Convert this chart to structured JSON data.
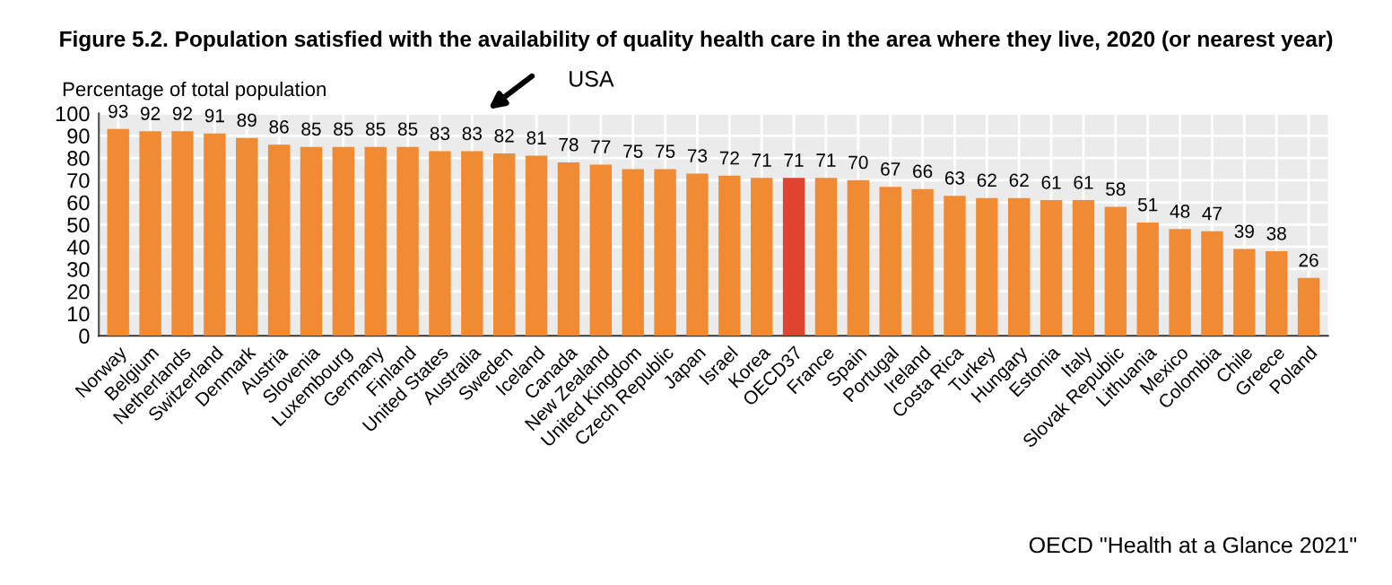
{
  "chart_data": {
    "type": "bar",
    "title": "Figure 5.2. Population satisfied with the availability of quality health care in the area where they live, 2020 (or nearest year)",
    "ylabel": "Percentage of total population",
    "categories": [
      "Norway",
      "Belgium",
      "Netherlands",
      "Switzerland",
      "Denmark",
      "Austria",
      "Slovenia",
      "Luxembourg",
      "Germany",
      "Finland",
      "United States",
      "Australia",
      "Sweden",
      "Iceland",
      "Canada",
      "New Zealand",
      "United Kingdom",
      "Czech Republic",
      "Japan",
      "Israel",
      "Korea",
      "OECD37",
      "France",
      "Spain",
      "Portugal",
      "Ireland",
      "Costa Rica",
      "Turkey",
      "Hungary",
      "Estonia",
      "Italy",
      "Slovak Republic",
      "Lithuania",
      "Mexico",
      "Colombia",
      "Chile",
      "Greece",
      "Poland"
    ],
    "values": [
      93,
      92,
      92,
      91,
      89,
      86,
      85,
      85,
      85,
      85,
      83,
      83,
      82,
      81,
      78,
      77,
      75,
      75,
      73,
      72,
      71,
      71,
      71,
      70,
      67,
      66,
      63,
      62,
      62,
      61,
      61,
      58,
      51,
      48,
      47,
      39,
      38,
      26
    ],
    "colors": [
      "#f08a33",
      "#f08a33",
      "#f08a33",
      "#f08a33",
      "#f08a33",
      "#f08a33",
      "#f08a33",
      "#f08a33",
      "#f08a33",
      "#f08a33",
      "#f08a33",
      "#f08a33",
      "#f08a33",
      "#f08a33",
      "#f08a33",
      "#f08a33",
      "#f08a33",
      "#f08a33",
      "#f08a33",
      "#f08a33",
      "#f08a33",
      "#e0432f",
      "#f08a33",
      "#f08a33",
      "#f08a33",
      "#f08a33",
      "#f08a33",
      "#f08a33",
      "#f08a33",
      "#f08a33",
      "#f08a33",
      "#f08a33",
      "#f08a33",
      "#f08a33",
      "#f08a33",
      "#f08a33",
      "#f08a33",
      "#f08a33"
    ],
    "ylim": [
      0,
      100
    ],
    "yticks": [
      0,
      10,
      20,
      30,
      40,
      50,
      60,
      70,
      80,
      90,
      100
    ],
    "grid": true,
    "data_labels": true,
    "annotations": [
      "USA",
      "OECD \"Health at a Glance 2021\""
    ]
  }
}
